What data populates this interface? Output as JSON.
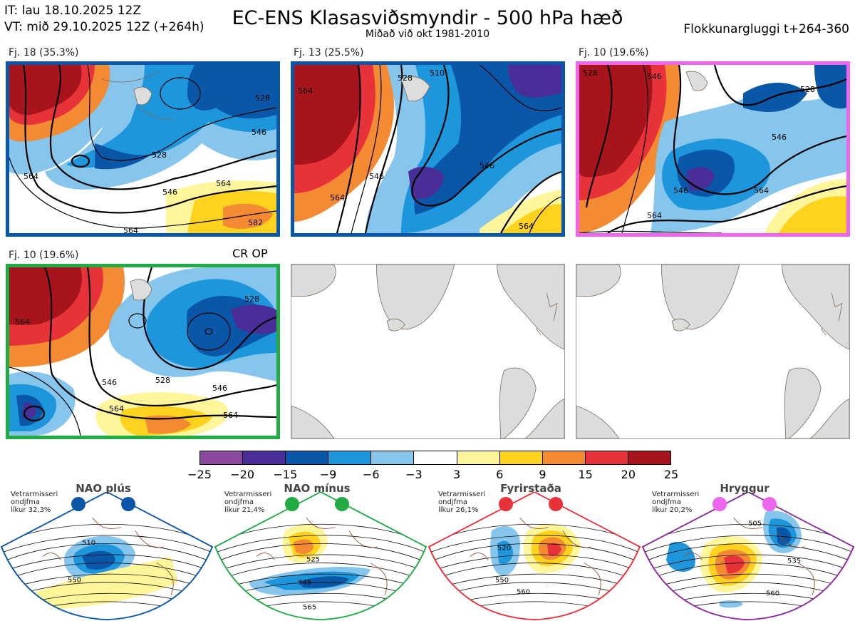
{
  "header": {
    "it_line": "IT: lau 18.10.2025 12Z",
    "vt_line": "VT: mið 29.10.2025 12Z  (+264h)",
    "title": "EC-ENS Klasasviðsmyndir - 500 hPa hæð",
    "subtitle": "Miðað við okt 1981-2010",
    "window": "Flokkunargluggi t+264-360"
  },
  "panels": [
    {
      "label": "Fj. 18 (35.3%)",
      "border_color": "#0a56a8",
      "contours": [
        "564",
        "546",
        "528",
        "546",
        "564",
        "564",
        "582",
        "528"
      ]
    },
    {
      "label": "Fj. 13 (25.5%)",
      "border_color": "#0a56a8",
      "contours": [
        "564",
        "528",
        "510",
        "546",
        "564",
        "546",
        "564"
      ]
    },
    {
      "label": "Fj. 10 (19.6%)",
      "border_color": "#ee66ee",
      "contours": [
        "528",
        "546",
        "528",
        "546",
        "564",
        "564",
        "546"
      ]
    },
    {
      "label": "Fj. 10 (19.6%)",
      "extra": "CR OP",
      "border_color": "#22aa44",
      "contours": [
        "564",
        "528",
        "546",
        "528",
        "546",
        "564",
        "564"
      ]
    }
  ],
  "colorbar": {
    "ticks": [
      "−25",
      "−20",
      "−15",
      "−9",
      "−6",
      "−3",
      "3",
      "6",
      "9",
      "15",
      "20",
      "25"
    ],
    "colors": [
      "#8c4a9e",
      "#4a2d96",
      "#0a56a8",
      "#1e96dc",
      "#86c6ec",
      "#ffffff",
      "#fff59a",
      "#ffd21e",
      "#f48a32",
      "#e8323a",
      "#a8141c"
    ]
  },
  "regimes": [
    {
      "name": "NAO plús",
      "note": [
        "Vetrarmisseri",
        "ondjfma",
        "líkur 32,3%"
      ],
      "color": "#0a56a8",
      "contours": [
        "510",
        "550"
      ]
    },
    {
      "name": "NAO mínus",
      "note": [
        "Vetrarmisseri",
        "ondjfma",
        "líkur 21,4%"
      ],
      "color": "#22aa44",
      "contours": [
        "525",
        "545",
        "565"
      ]
    },
    {
      "name": "Fyrirstaða",
      "note": [
        "Vetrarmisseri",
        "ondjfma",
        "líkur 26,1%"
      ],
      "color": "#e8323a",
      "contours": [
        "520",
        "550",
        "560"
      ]
    },
    {
      "name": "Hryggur",
      "note": [
        "Vetrarmisseri",
        "ondjfma",
        "líkur 20,2%"
      ],
      "color": "#ee66ee",
      "border_color": "#8a2a9e",
      "contours": [
        "505",
        "535",
        "560"
      ]
    }
  ]
}
